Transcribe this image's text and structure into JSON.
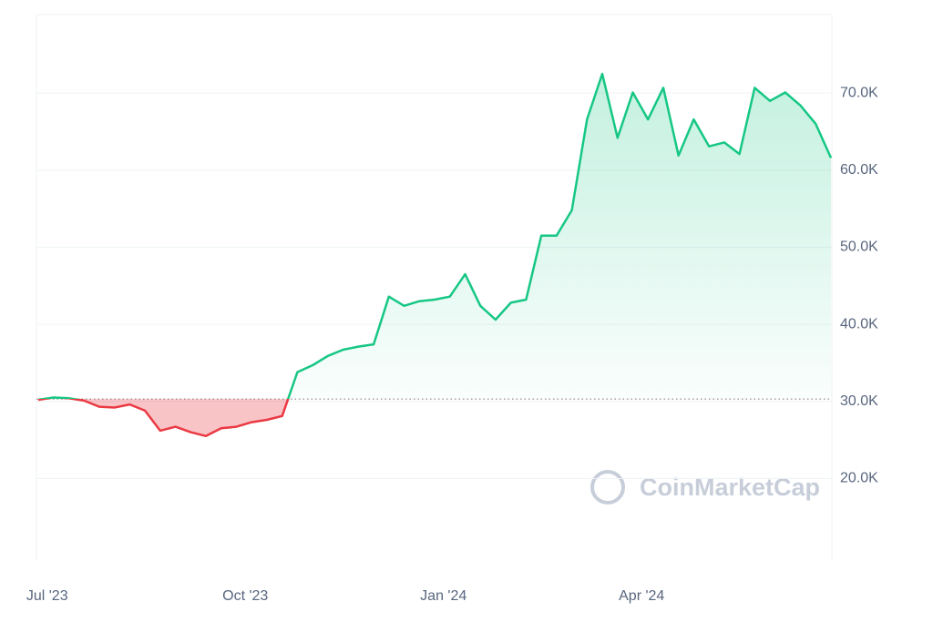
{
  "chart_data": {
    "type": "line",
    "watermark": "CoinMarketCap",
    "categories": [
      null,
      "Jul '23",
      null,
      null,
      null,
      null,
      null,
      null,
      null,
      null,
      null,
      null,
      null,
      null,
      "Oct '23",
      null,
      null,
      null,
      null,
      null,
      null,
      null,
      null,
      null,
      null,
      null,
      null,
      "Jan '24",
      null,
      null,
      null,
      null,
      null,
      null,
      null,
      null,
      null,
      null,
      null,
      null,
      "Apr '24",
      null,
      null,
      null,
      null,
      null,
      null,
      null,
      null,
      null,
      null,
      null,
      null
    ],
    "series": [
      {
        "values": [
          30200,
          30500,
          30400,
          30100,
          29300,
          29200,
          29600,
          28800,
          26200,
          26700,
          26000,
          25500,
          26500,
          26700,
          27300,
          27600,
          28100,
          33800,
          34700,
          35900,
          36700,
          37100,
          37400,
          43600,
          42400,
          43000,
          43200,
          43600,
          46500,
          42400,
          40600,
          42800,
          43200,
          51500,
          51500,
          54800,
          66600,
          72500,
          64200,
          70100,
          66600,
          70700,
          61900,
          66600,
          63100,
          63600,
          62100,
          70700,
          69000,
          70100,
          68400,
          66000,
          61600
        ]
      }
    ],
    "baseline": 30300,
    "up_color": "#16c784",
    "down_color": "#ea3943",
    "ylim": [
      9400,
      80200
    ],
    "yticks": [
      {
        "value": 20000,
        "label": "20.0K"
      },
      {
        "value": 30000,
        "label": "30.0K"
      },
      {
        "value": 40000,
        "label": "40.0K"
      },
      {
        "value": 50000,
        "label": "50.0K"
      },
      {
        "value": 60000,
        "label": "60.0K"
      },
      {
        "value": 70000,
        "label": "70.0K"
      }
    ],
    "grid": true
  }
}
